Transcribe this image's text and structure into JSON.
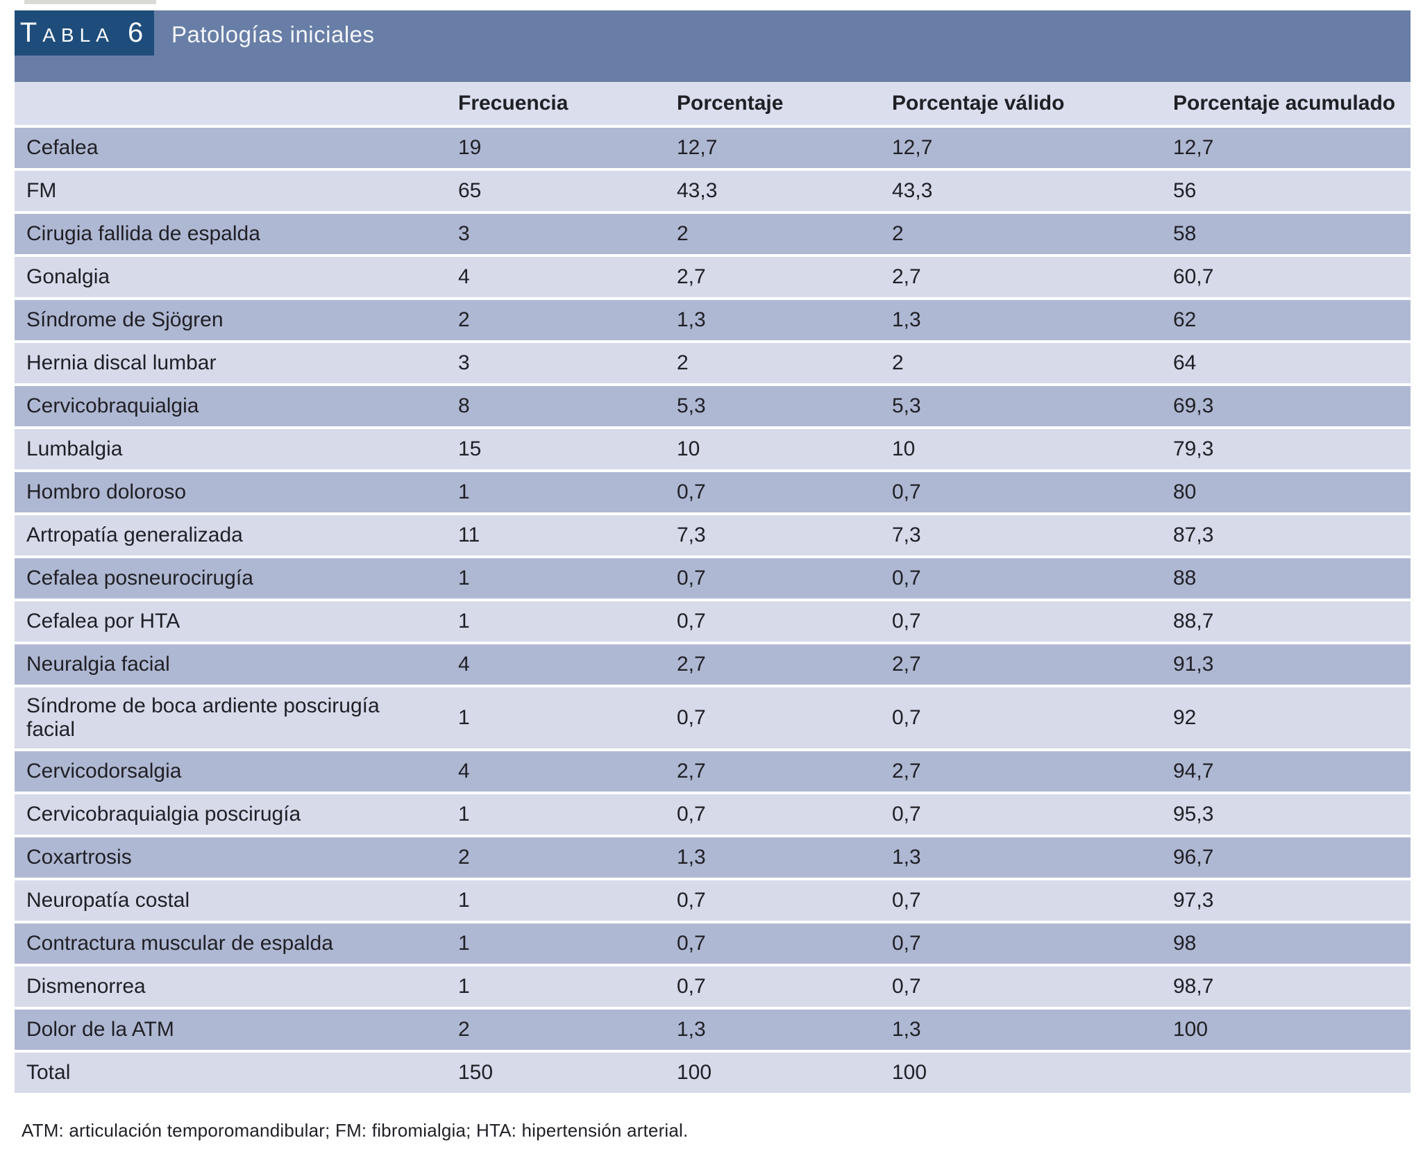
{
  "header": {
    "table_label": "Tabla 6",
    "title": "Patologías iniciales"
  },
  "table": {
    "columns": [
      "",
      "Frecuencia",
      "Porcentaje",
      "Porcentaje válido",
      "Porcentaje acumulado"
    ],
    "rows": [
      {
        "label": "Cefalea",
        "frecuencia": "19",
        "porcentaje": "12,7",
        "porcentaje_valido": "12,7",
        "porcentaje_acumulado": "12,7"
      },
      {
        "label": "FM",
        "frecuencia": "65",
        "porcentaje": "43,3",
        "porcentaje_valido": "43,3",
        "porcentaje_acumulado": "56"
      },
      {
        "label": "Cirugia fallida de espalda",
        "frecuencia": "3",
        "porcentaje": "2",
        "porcentaje_valido": "2",
        "porcentaje_acumulado": "58"
      },
      {
        "label": "Gonalgia",
        "frecuencia": "4",
        "porcentaje": "2,7",
        "porcentaje_valido": "2,7",
        "porcentaje_acumulado": "60,7"
      },
      {
        "label": "Síndrome de Sjögren",
        "frecuencia": "2",
        "porcentaje": "1,3",
        "porcentaje_valido": "1,3",
        "porcentaje_acumulado": "62"
      },
      {
        "label": "Hernia discal lumbar",
        "frecuencia": "3",
        "porcentaje": "2",
        "porcentaje_valido": "2",
        "porcentaje_acumulado": "64"
      },
      {
        "label": "Cervicobraquialgia",
        "frecuencia": "8",
        "porcentaje": "5,3",
        "porcentaje_valido": "5,3",
        "porcentaje_acumulado": "69,3"
      },
      {
        "label": "Lumbalgia",
        "frecuencia": "15",
        "porcentaje": "10",
        "porcentaje_valido": "10",
        "porcentaje_acumulado": "79,3"
      },
      {
        "label": "Hombro doloroso",
        "frecuencia": "1",
        "porcentaje": "0,7",
        "porcentaje_valido": "0,7",
        "porcentaje_acumulado": "80"
      },
      {
        "label": "Artropatía generalizada",
        "frecuencia": "11",
        "porcentaje": "7,3",
        "porcentaje_valido": "7,3",
        "porcentaje_acumulado": "87,3"
      },
      {
        "label": "Cefalea posneurocirugía",
        "frecuencia": "1",
        "porcentaje": "0,7",
        "porcentaje_valido": "0,7",
        "porcentaje_acumulado": "88"
      },
      {
        "label": "Cefalea por HTA",
        "frecuencia": "1",
        "porcentaje": "0,7",
        "porcentaje_valido": "0,7",
        "porcentaje_acumulado": "88,7"
      },
      {
        "label": "Neuralgia facial",
        "frecuencia": "4",
        "porcentaje": "2,7",
        "porcentaje_valido": "2,7",
        "porcentaje_acumulado": "91,3"
      },
      {
        "label": "Síndrome de boca ardiente poscirugía\nfacial",
        "frecuencia": "1",
        "porcentaje": "0,7",
        "porcentaje_valido": "0,7",
        "porcentaje_acumulado": "92"
      },
      {
        "label": "Cervicodorsalgia",
        "frecuencia": "4",
        "porcentaje": "2,7",
        "porcentaje_valido": "2,7",
        "porcentaje_acumulado": "94,7"
      },
      {
        "label": "Cervicobraquialgia poscirugía",
        "frecuencia": "1",
        "porcentaje": "0,7",
        "porcentaje_valido": "0,7",
        "porcentaje_acumulado": "95,3"
      },
      {
        "label": "Coxartrosis",
        "frecuencia": "2",
        "porcentaje": "1,3",
        "porcentaje_valido": "1,3",
        "porcentaje_acumulado": "96,7"
      },
      {
        "label": "Neuropatía costal",
        "frecuencia": "1",
        "porcentaje": "0,7",
        "porcentaje_valido": "0,7",
        "porcentaje_acumulado": "97,3"
      },
      {
        "label": "Contractura muscular de espalda",
        "frecuencia": "1",
        "porcentaje": "0,7",
        "porcentaje_valido": "0,7",
        "porcentaje_acumulado": "98"
      },
      {
        "label": "Dismenorrea",
        "frecuencia": "1",
        "porcentaje": "0,7",
        "porcentaje_valido": "0,7",
        "porcentaje_acumulado": "98,7"
      },
      {
        "label": "Dolor de la ATM",
        "frecuencia": "2",
        "porcentaje": "1,3",
        "porcentaje_valido": "1,3",
        "porcentaje_acumulado": "100"
      },
      {
        "label": "Total",
        "frecuencia": "150",
        "porcentaje": "100",
        "porcentaje_valido": "100",
        "porcentaje_acumulado": ""
      }
    ]
  },
  "footnote": "ATM: articulación temporomandibular; FM: fibromialgia; HTA: hipertensión arterial.",
  "colors": {
    "banner_blue": "#687ea6",
    "table_number_box_navy": "#1e4d7c",
    "header_row": "#dbdeec",
    "row_dark": "#afb8d2",
    "row_light": "#d6dae9",
    "text": "#1f1f26",
    "separator": "#ffffff"
  }
}
